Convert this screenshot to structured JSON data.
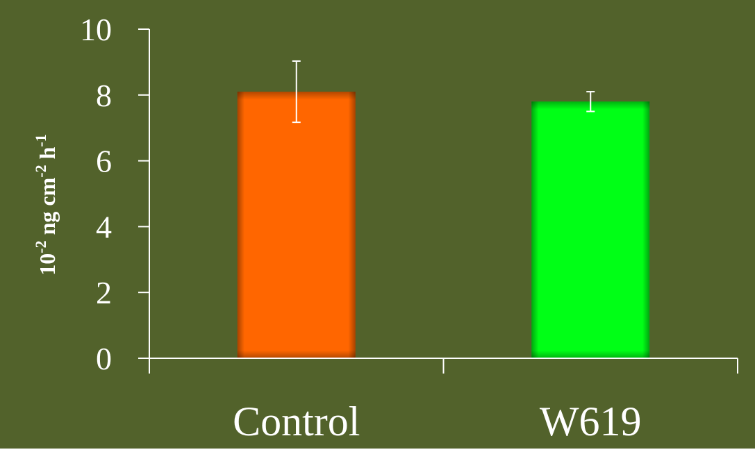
{
  "colors": {
    "background": "#52622b",
    "axis": "#ffffff",
    "control_bar": "#ff6600",
    "w619_bar": "#00ff16",
    "error_bar": "#ffffff"
  },
  "chart_data": {
    "type": "bar",
    "title": "",
    "xlabel": "",
    "ylabel": {
      "base": "10",
      "exp1": "-2",
      "mid1": " ng cm",
      "exp2": "-2",
      "mid2": " h",
      "exp3": "-1"
    },
    "categories": [
      "Control",
      "W619"
    ],
    "values": [
      8.1,
      7.8
    ],
    "errors": [
      0.93,
      0.3
    ],
    "bar_colors": [
      "#ff6600",
      "#00ff16"
    ],
    "ylim": [
      0,
      10
    ],
    "yticks": [
      "0",
      "2",
      "4",
      "6",
      "8",
      "10"
    ],
    "grid": false,
    "legend": "none"
  }
}
